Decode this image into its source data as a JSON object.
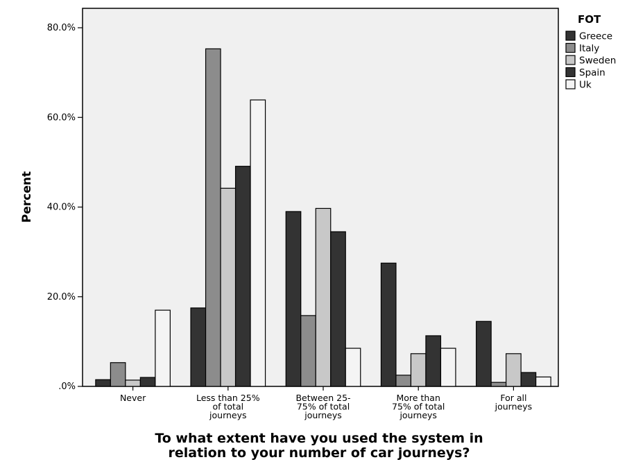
{
  "chart_data": {
    "type": "bar",
    "xlabel": [
      "To what extent have you used the system in",
      "relation to your number of car journeys?"
    ],
    "ylabel": "Percent",
    "ylim": [
      0,
      80
    ],
    "yticks": [
      0,
      20,
      40,
      60,
      80
    ],
    "ytick_labels": [
      ".0%",
      "20.0%",
      "40.0%",
      "60.0%",
      "80.0%"
    ],
    "categories": [
      [
        "Never"
      ],
      [
        "Less than 25%",
        "of total",
        "journeys"
      ],
      [
        "Between 25-",
        "75% of total",
        "journeys"
      ],
      [
        "More than",
        "75% of total",
        "journeys"
      ],
      [
        "For all",
        "journeys"
      ]
    ],
    "legend_title": "FOT",
    "legend_position": "right",
    "grid": false,
    "series": [
      {
        "name": "Greece",
        "color": "#333333",
        "values": [
          1.5,
          17.5,
          39,
          27.5,
          14.5
        ]
      },
      {
        "name": "Italy",
        "color": "#8c8c8c",
        "values": [
          5.3,
          75.3,
          15.8,
          2.5,
          0.9
        ]
      },
      {
        "name": "Sweden",
        "color": "#c8c8c8",
        "values": [
          1.4,
          44.2,
          39.7,
          7.3,
          7.3
        ]
      },
      {
        "name": "Spain",
        "color": "#333333",
        "values": [
          2.0,
          49.1,
          34.5,
          11.3,
          3.1
        ]
      },
      {
        "name": "Uk",
        "color": "#f4f4f4",
        "values": [
          17.0,
          63.9,
          8.5,
          8.5,
          2.1
        ]
      }
    ]
  }
}
